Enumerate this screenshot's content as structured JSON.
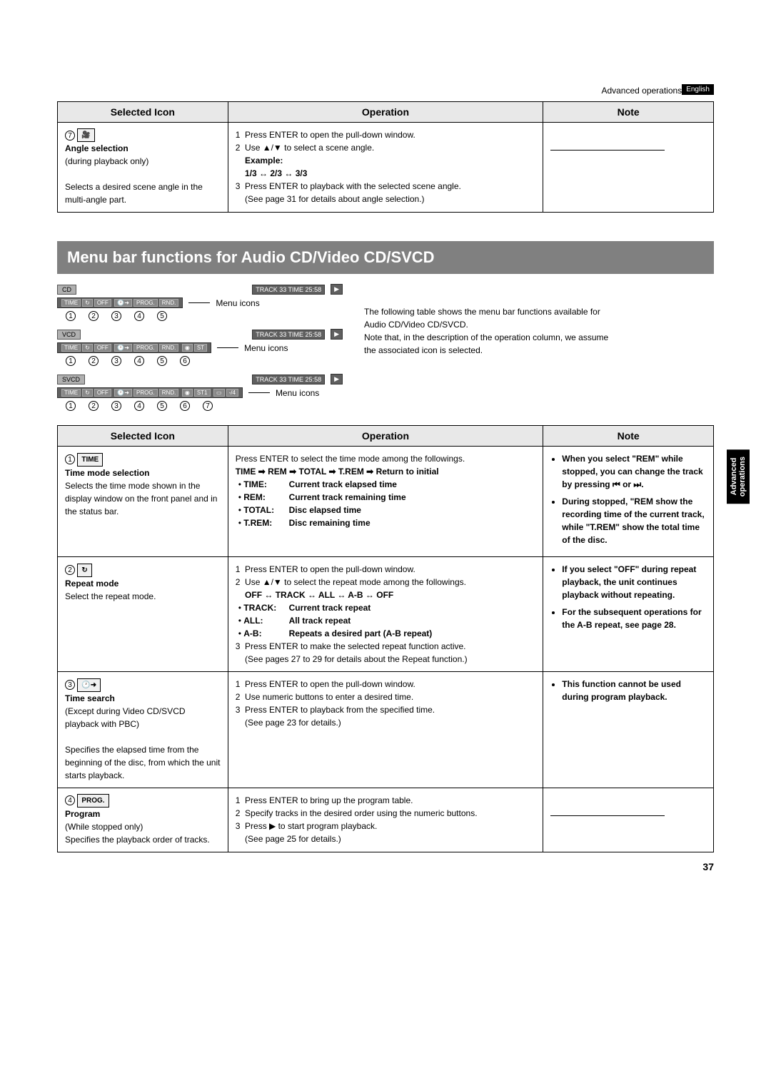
{
  "header": {
    "section_label": "Advanced operations",
    "language": "English"
  },
  "side_tab": {
    "line1": "Advanced",
    "line2": "operations"
  },
  "table1": {
    "headers": [
      "Selected Icon",
      "Operation",
      "Note"
    ],
    "row": {
      "num": "7",
      "icon_label": "🎥",
      "title": "Angle selection",
      "subtitle": "(during playback only)",
      "desc": "Selects a desired scene angle in the multi-angle part.",
      "op_1": "Press ENTER to open the pull-down window.",
      "op_2a": "Use ",
      "op_2b": " to select a scene angle.",
      "example_label": "Example:",
      "example": "1/3 ↔ 2/3 ↔ 3/3",
      "op_3": "Press ENTER to playback with the selected scene angle.",
      "op_see": "(See page 31 for details about angle selection.)"
    }
  },
  "section_title": "Menu bar functions for Audio CD/Video CD/SVCD",
  "diagrams": {
    "cd_label": "CD",
    "vcd_label": "VCD",
    "svcd_label": "SVCD",
    "track_info": "TRACK 33    TIME    25:58",
    "time_seg": "TIME",
    "off_seg": "OFF",
    "prog_seg": "PROG.",
    "rnd_seg": "RND.",
    "st_seg": "ST",
    "st1_seg": "ST1",
    "extra_seg": "-/4",
    "caption": "Menu icons"
  },
  "intro_text": {
    "p1": "The following table shows the menu bar functions available for Audio CD/Video CD/SVCD.",
    "p2": "Note that, in the description of the operation column, we assume the associated icon is selected."
  },
  "table2": {
    "headers": [
      "Selected Icon",
      "Operation",
      "Note"
    ],
    "rows": [
      {
        "num": "1",
        "icon_label": "TIME",
        "title": "Time mode selection",
        "desc": "Selects the time mode shown in the display window on the front panel and in the status bar.",
        "op_intro": "Press ENTER to select the time mode among the followings.",
        "op_seq": "TIME ➡ REM ➡ TOTAL ➡ T.REM ➡ Return to initial",
        "defs": [
          {
            "k": "TIME:",
            "v": "Current track elapsed time"
          },
          {
            "k": "REM:",
            "v": "Current track remaining time"
          },
          {
            "k": "TOTAL:",
            "v": "Disc elapsed time"
          },
          {
            "k": "T.REM:",
            "v": "Disc remaining time"
          }
        ],
        "notes": [
          "When you select \"REM\" while stopped, you can change the track by pressing ⏮ or ⏭.",
          "During stopped, \"REM show the recording time of the current track, while \"T.REM\" show the total time of the disc."
        ]
      },
      {
        "num": "2",
        "icon_label": "↻",
        "title": "Repeat mode",
        "desc": "Select the repeat mode.",
        "op_1": "Press ENTER to open the pull-down window.",
        "op_2": "Use ▲/▼ to select the repeat mode among the followings.",
        "op_seq": "OFF ↔ TRACK ↔ ALL ↔ A-B ↔ OFF",
        "defs": [
          {
            "k": "TRACK:",
            "v": "Current track repeat"
          },
          {
            "k": "ALL:",
            "v": "All track repeat"
          },
          {
            "k": "A-B:",
            "v": "Repeats a desired part (A-B repeat)"
          }
        ],
        "op_3": "Press ENTER to make the selected repeat function active.",
        "op_see": "(See pages 27 to 29 for details about the Repeat function.)",
        "notes": [
          "If you select \"OFF\" during repeat playback, the unit continues playback without repeating.",
          "For the subsequent operations for the A-B repeat, see page 28."
        ]
      },
      {
        "num": "3",
        "icon_label": "🕐➜",
        "title": "Time search",
        "subtitle": "(Except during Video CD/SVCD playback with PBC)",
        "desc": "Specifies the elapsed time from the beginning of the disc, from which the unit starts playback.",
        "op_1": "Press ENTER to open the pull-down window.",
        "op_2": "Use numeric buttons to enter a desired time.",
        "op_3": "Press ENTER to playback from the specified time.",
        "op_see": "(See page 23 for details.)",
        "notes": [
          "This function cannot be used during program playback."
        ]
      },
      {
        "num": "4",
        "icon_label": "PROG.",
        "title": "Program",
        "subtitle": "(While stopped only)",
        "desc": "Specifies the playback order of tracks.",
        "op_1": "Press ENTER to bring up the program table.",
        "op_2": "Specify tracks in the desired order using the numeric buttons.",
        "op_3": "Press ▶ to start program playback.",
        "op_see": "(See page 25 for details.)"
      }
    ]
  },
  "page_number": "37"
}
